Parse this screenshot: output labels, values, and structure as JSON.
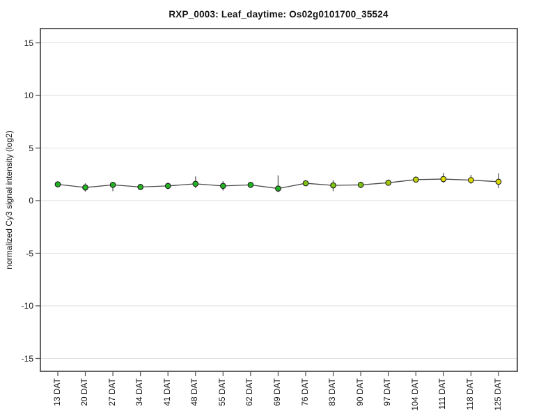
{
  "chart_data": {
    "type": "line",
    "title": "RXP_0003: Leaf_daytime: Os02g0101700_35524",
    "xlabel": "",
    "ylabel": "normalized Cy3 signal intensity (log2)",
    "ylim": [
      -16.3,
      16.3
    ],
    "yticks": [
      15,
      10,
      5,
      0,
      -5,
      -10,
      -15
    ],
    "grid": "horizontal-only",
    "legend": "none",
    "categories": [
      "13 DAT",
      "20 DAT",
      "27 DAT",
      "34 DAT",
      "41 DAT",
      "48 DAT",
      "55 DAT",
      "62 DAT",
      "69 DAT",
      "76 DAT",
      "83 DAT",
      "90 DAT",
      "97 DAT",
      "104 DAT",
      "111 DAT",
      "118 DAT",
      "125 DAT"
    ],
    "series": [
      {
        "name": "Leaf_daytime",
        "values": [
          1.55,
          1.25,
          1.5,
          1.3,
          1.4,
          1.6,
          1.4,
          1.5,
          1.15,
          1.65,
          1.45,
          1.5,
          1.7,
          2.0,
          2.05,
          1.95,
          1.8
        ],
        "err_lo": [
          1.4,
          0.85,
          0.9,
          1.15,
          1.1,
          1.2,
          0.95,
          1.3,
          0.8,
          1.45,
          0.9,
          1.2,
          1.45,
          1.75,
          1.7,
          1.6,
          1.2
        ],
        "err_hi": [
          1.7,
          1.65,
          1.75,
          1.5,
          1.7,
          2.3,
          1.85,
          1.75,
          2.4,
          1.85,
          1.95,
          1.8,
          2.0,
          2.3,
          2.65,
          2.45,
          2.6
        ],
        "point_colors": [
          "#22b422",
          "#22b422",
          "#22b422",
          "#22b422",
          "#22b422",
          "#22b422",
          "#22b422",
          "#22b422",
          "#22b422",
          "#7cc413",
          "#7cc413",
          "#7cc413",
          "#a3c80c",
          "#bcd007",
          "#ddda00",
          "#ddda00",
          "#ddda00"
        ]
      }
    ],
    "colors": {
      "line": "#4a4a4a",
      "error_bar": "#6b6b6b",
      "grid": "#dedede",
      "plot_border": "#3c3c3c",
      "tick": "#555555",
      "point_edge": "#1a1a1a",
      "text": "#111111"
    }
  }
}
